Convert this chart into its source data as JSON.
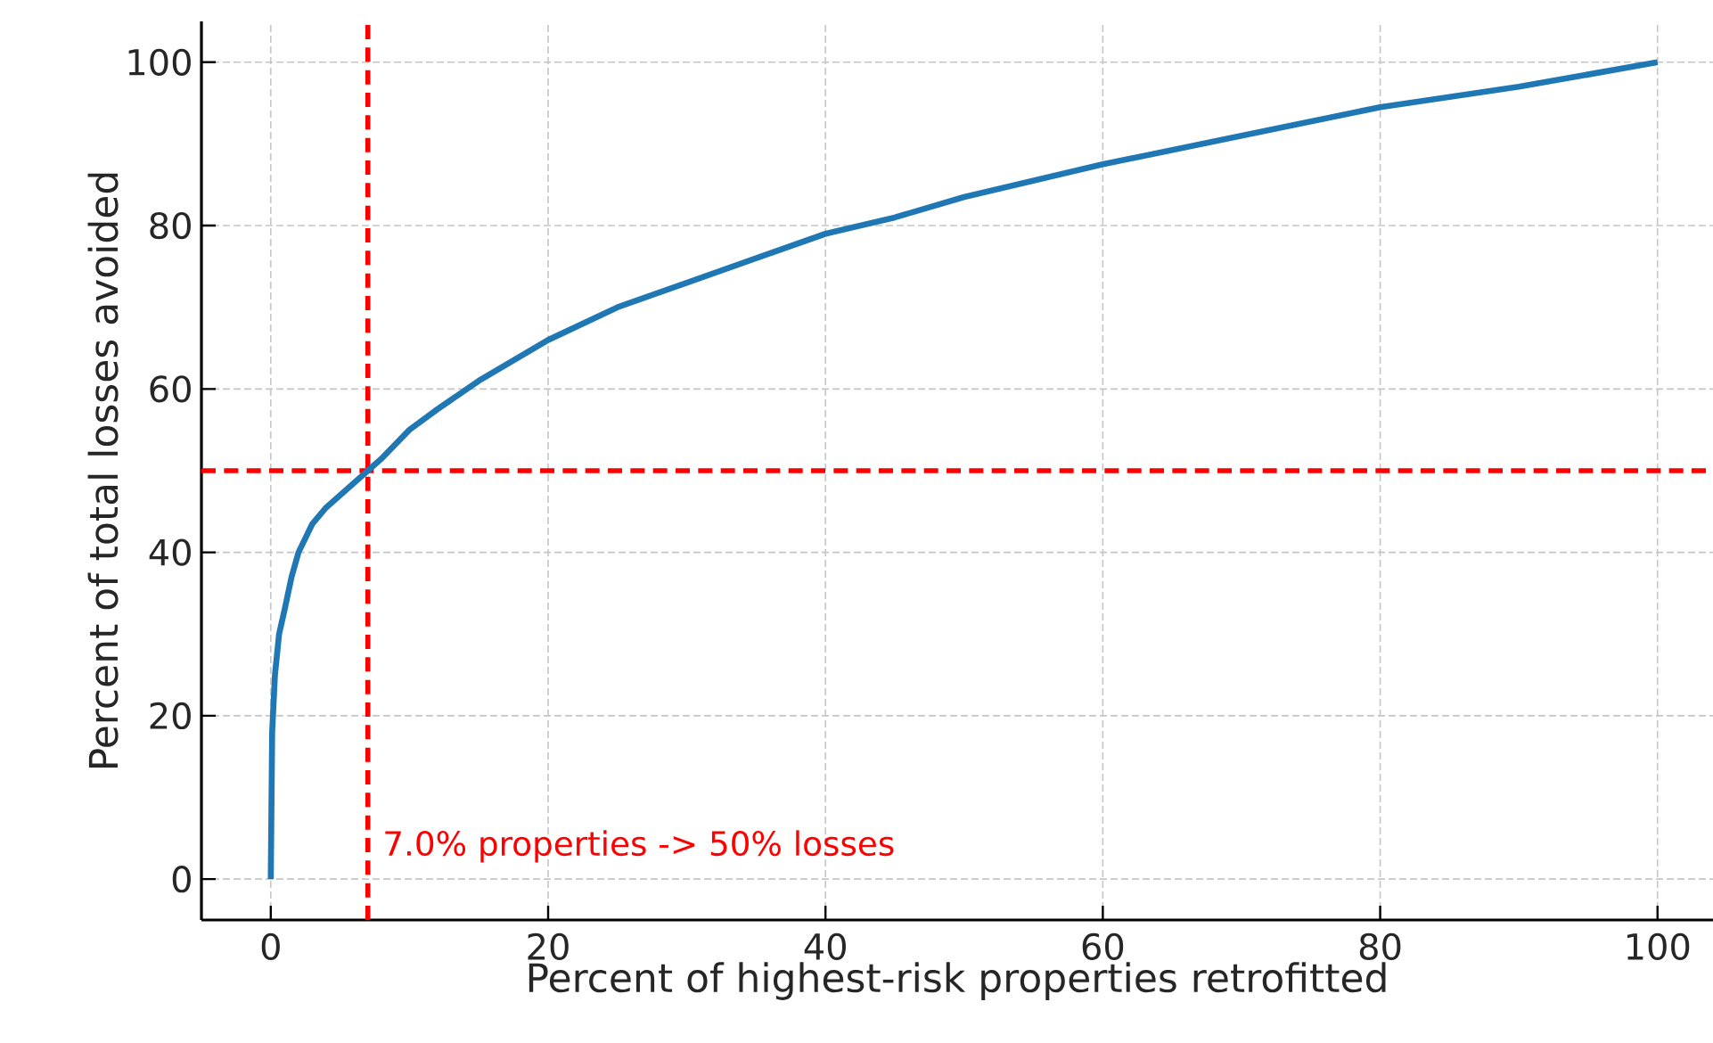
{
  "chart_data": {
    "type": "line",
    "xlabel": "Percent of highest-risk properties retrofitted",
    "ylabel": "Percent of total losses avoided",
    "x": [
      0,
      0.1,
      0.3,
      0.6,
      1,
      1.5,
      2,
      3,
      4,
      5,
      6,
      7,
      8,
      10,
      12,
      15,
      20,
      25,
      30,
      35,
      40,
      45,
      50,
      60,
      70,
      80,
      90,
      100
    ],
    "series": [
      {
        "color": "#1f77b4",
        "values": [
          0,
          18,
          25,
          30,
          33,
          37,
          40,
          43.5,
          45.5,
          47,
          48.5,
          50,
          51.5,
          55,
          57.5,
          61,
          66,
          70,
          73,
          76,
          79,
          81,
          83.5,
          87.5,
          91,
          94.5,
          97,
          100
        ]
      }
    ],
    "xlim": [
      -5,
      104
    ],
    "ylim": [
      -5,
      105
    ],
    "xticks": [
      0,
      20,
      40,
      60,
      80,
      100
    ],
    "yticks": [
      0,
      20,
      40,
      60,
      80,
      100
    ],
    "grid": true,
    "marker": "none",
    "line_style": "solid",
    "ref_lines": [
      {
        "axis": "x",
        "value": 7,
        "label": "7.0% properties -> 50% losses",
        "color": "#ff0000",
        "line_style": "dashed"
      },
      {
        "axis": "y",
        "value": 50,
        "color": "#ff0000",
        "line_style": "dashed"
      }
    ]
  }
}
